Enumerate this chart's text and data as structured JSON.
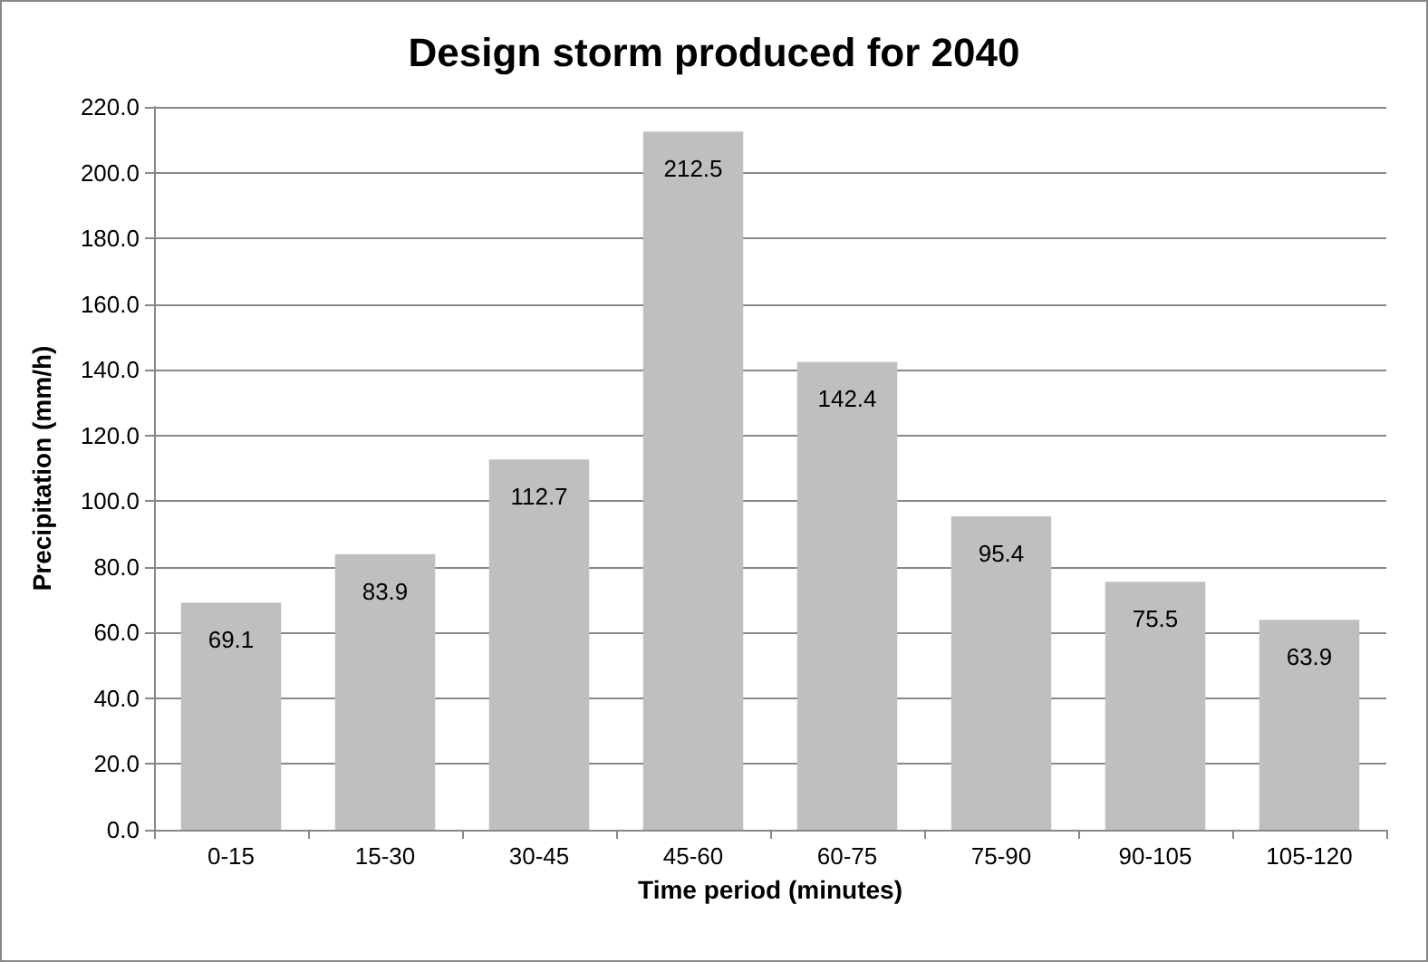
{
  "chart_data": {
    "type": "bar",
    "title": "Design storm produced for 2040",
    "xlabel": "Time period (minutes)",
    "ylabel": "Precipitation (mm/h)",
    "categories": [
      "0-15",
      "15-30",
      "30-45",
      "45-60",
      "60-75",
      "75-90",
      "90-105",
      "105-120"
    ],
    "values": [
      69.1,
      83.9,
      112.7,
      212.5,
      142.4,
      95.4,
      75.5,
      63.9
    ],
    "color": "#bfbfbf",
    "ylim": [
      0,
      220
    ],
    "yticks": [
      {
        "value": 0,
        "label": "0.0"
      },
      {
        "value": 20,
        "label": "20.0"
      },
      {
        "value": 40,
        "label": "40.0"
      },
      {
        "value": 60,
        "label": "60.0"
      },
      {
        "value": 80,
        "label": "80.0"
      },
      {
        "value": 100,
        "label": "100.0"
      },
      {
        "value": 120,
        "label": "120.0"
      },
      {
        "value": 140,
        "label": "140.0"
      },
      {
        "value": 160,
        "label": "160.0"
      },
      {
        "value": 180,
        "label": "180.0"
      },
      {
        "value": 200,
        "label": "200.0"
      },
      {
        "value": 220,
        "label": "220.0"
      }
    ],
    "grid": true,
    "data_labels": true
  }
}
